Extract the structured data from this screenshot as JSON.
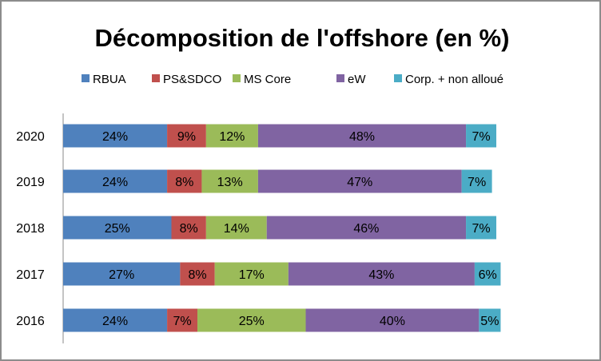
{
  "chart_data": {
    "type": "bar",
    "orientation": "horizontal",
    "stacked": true,
    "title": "Décomposition de l'offshore (en %)",
    "categories": [
      "2020",
      "2019",
      "2018",
      "2017",
      "2016"
    ],
    "series": [
      {
        "name": "RBUA",
        "color": "#4F81BD",
        "values": [
          24,
          24,
          25,
          27,
          24
        ],
        "labels": [
          "24%",
          "24%",
          "25%",
          "27%",
          "24%"
        ]
      },
      {
        "name": "PS&SDCO",
        "color": "#C0504D",
        "values": [
          9,
          8,
          8,
          8,
          7
        ],
        "labels": [
          "9%",
          "8%",
          "8%",
          "8%",
          "7%"
        ]
      },
      {
        "name": "MS Core",
        "color": "#9BBB59",
        "values": [
          12,
          13,
          14,
          17,
          25
        ],
        "labels": [
          "12%",
          "13%",
          "14%",
          "17%",
          "25%"
        ]
      },
      {
        "name": "eW",
        "color": "#8064A2",
        "values": [
          48,
          47,
          46,
          43,
          40
        ],
        "labels": [
          "48%",
          "47%",
          "46%",
          "43%",
          "40%"
        ]
      },
      {
        "name": "Corp. + non alloué",
        "color": "#4BACC6",
        "values": [
          7,
          7,
          7,
          6,
          5
        ],
        "labels": [
          "7%",
          "7%",
          "7%",
          "6%",
          "5%"
        ]
      }
    ],
    "legend_position": "top",
    "grid": false,
    "x_axis_visible": false,
    "xlim": [
      0,
      120
    ]
  }
}
